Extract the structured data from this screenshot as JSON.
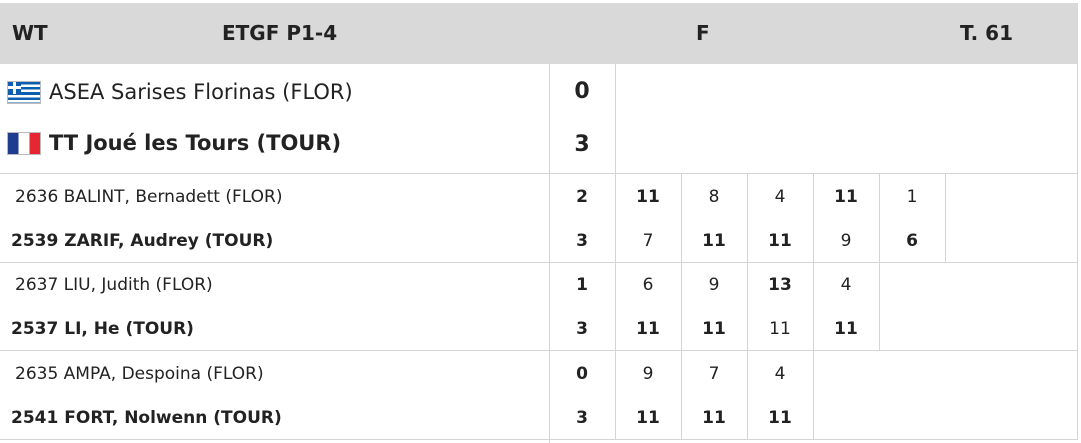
{
  "header": {
    "event": "WT",
    "title": "ETGF P1-4",
    "round": "F",
    "table": "T. 61"
  },
  "teams": [
    {
      "name": "ASEA Sarises Florinas (FLOR)",
      "flag": "greece-flag",
      "score": "0",
      "winner": false
    },
    {
      "name": "TT Joué les Tours (TOUR)",
      "flag": "france-flag",
      "score": "3",
      "winner": true
    }
  ],
  "matches": [
    {
      "players": [
        {
          "number": "2636",
          "name": "BALINT, Bernadett (FLOR)",
          "score": "2",
          "winner": false,
          "sets": [
            "11",
            "8",
            "4",
            "11",
            "1"
          ]
        },
        {
          "number": "2539",
          "name": "ZARIF, Audrey (TOUR)",
          "score": "3",
          "winner": true,
          "sets": [
            "7",
            "11",
            "11",
            "9",
            "6"
          ]
        }
      ]
    },
    {
      "players": [
        {
          "number": "2637",
          "name": "LIU, Judith (FLOR)",
          "score": "1",
          "winner": false,
          "sets": [
            "6",
            "9",
            "13",
            "4"
          ]
        },
        {
          "number": "2537",
          "name": "LI, He (TOUR)",
          "score": "3",
          "winner": true,
          "sets": [
            "11",
            "11",
            "11",
            "11"
          ]
        }
      ]
    },
    {
      "players": [
        {
          "number": "2635",
          "name": "AMPA, Despoina (FLOR)",
          "score": "0",
          "winner": false,
          "sets": [
            "9",
            "7",
            "4"
          ]
        },
        {
          "number": "2541",
          "name": "FORT, Nolwenn (TOUR)",
          "score": "3",
          "winner": true,
          "sets": [
            "11",
            "11",
            "11"
          ]
        }
      ]
    }
  ]
}
